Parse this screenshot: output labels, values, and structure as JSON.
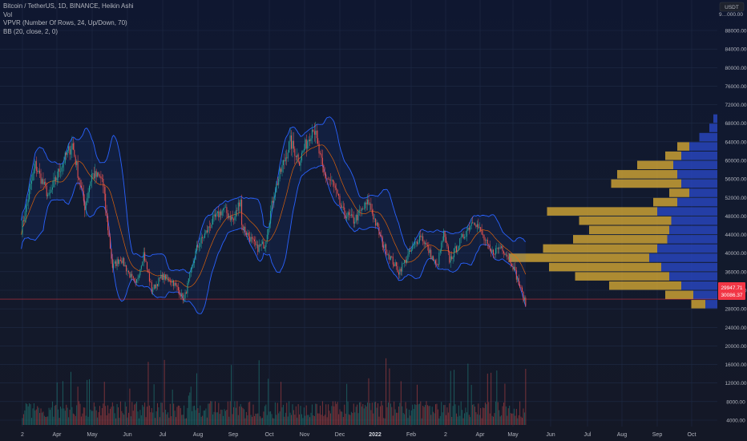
{
  "legend": {
    "main": "Bitcoin / TetherUS, 1D, BINANCE, Heikin Ashi",
    "vol": "Vol",
    "vpvr": "VPVR (Number Of Rows, 24, Up/Down, 70)",
    "bb": "BB (20, close, 2, 0)"
  },
  "currency_label": "USDT",
  "top_axis_value": "9…000.00",
  "price_tags": {
    "last": "30086.37",
    "prev": "29947.71",
    "color": "#f23645"
  },
  "colors": {
    "up": "#26a69a",
    "down": "#ef5350",
    "band": "#2962ff",
    "basis": "#ff6d00",
    "vpvr_up": "#2b4bcf",
    "vpvr_down": "#d4a835"
  },
  "chart_data": {
    "type": "candlestick",
    "price_ticks": [
      "88000.00",
      "84000.00",
      "80000.00",
      "76000.00",
      "72000.00",
      "68000.00",
      "64000.00",
      "60000.00",
      "56000.00",
      "52000.00",
      "48000.00",
      "44000.00",
      "40000.00",
      "36000.00",
      "32000.00",
      "28000.00",
      "24000.00",
      "20000.00",
      "16000.00",
      "12000.00",
      "8000.00",
      "4000.00"
    ],
    "time_labels": [
      {
        "label": "2",
        "bold": false
      },
      {
        "label": "Apr",
        "bold": false
      },
      {
        "label": "May",
        "bold": false
      },
      {
        "label": "Jun",
        "bold": false
      },
      {
        "label": "Jul",
        "bold": false
      },
      {
        "label": "Aug",
        "bold": false
      },
      {
        "label": "Sep",
        "bold": false
      },
      {
        "label": "Oct",
        "bold": false
      },
      {
        "label": "Nov",
        "bold": false
      },
      {
        "label": "Dec",
        "bold": false
      },
      {
        "label": "2022",
        "bold": true
      },
      {
        "label": "Feb",
        "bold": false
      },
      {
        "label": "2",
        "bold": false
      },
      {
        "label": "Apr",
        "bold": false
      },
      {
        "label": "May",
        "bold": false
      },
      {
        "label": "Jun",
        "bold": false
      },
      {
        "label": "Jul",
        "bold": false
      },
      {
        "label": "Aug",
        "bold": false
      },
      {
        "label": "Sep",
        "bold": false
      },
      {
        "label": "Oct",
        "bold": false
      }
    ],
    "price_path": [
      [
        "2021-03-01",
        45000
      ],
      [
        "2021-03-13",
        59000
      ],
      [
        "2021-03-25",
        52000
      ],
      [
        "2021-04-03",
        58000
      ],
      [
        "2021-04-14",
        63500
      ],
      [
        "2021-04-25",
        50000
      ],
      [
        "2021-05-01",
        57000
      ],
      [
        "2021-05-10",
        56000
      ],
      [
        "2021-05-19",
        37000
      ],
      [
        "2021-05-26",
        39000
      ],
      [
        "2021-06-08",
        33000
      ],
      [
        "2021-06-15",
        40000
      ],
      [
        "2021-06-22",
        32000
      ],
      [
        "2021-07-01",
        35000
      ],
      [
        "2021-07-10",
        34000
      ],
      [
        "2021-07-20",
        30000
      ],
      [
        "2021-07-31",
        41000
      ],
      [
        "2021-08-14",
        47000
      ],
      [
        "2021-08-23",
        49500
      ],
      [
        "2021-09-01",
        47000
      ],
      [
        "2021-09-07",
        52000
      ],
      [
        "2021-09-08",
        46000
      ],
      [
        "2021-09-21",
        41000
      ],
      [
        "2021-09-28",
        42000
      ],
      [
        "2021-10-06",
        53000
      ],
      [
        "2021-10-20",
        64000
      ],
      [
        "2021-10-28",
        60000
      ],
      [
        "2021-11-09",
        67500
      ],
      [
        "2021-11-18",
        57000
      ],
      [
        "2021-11-26",
        55000
      ],
      [
        "2021-12-04",
        49000
      ],
      [
        "2021-12-14",
        47000
      ],
      [
        "2021-12-27",
        51000
      ],
      [
        "2022-01-08",
        42000
      ],
      [
        "2022-01-22",
        36000
      ],
      [
        "2022-02-10",
        44000
      ],
      [
        "2022-02-24",
        37000
      ],
      [
        "2022-03-02",
        44000
      ],
      [
        "2022-03-07",
        38500
      ],
      [
        "2022-03-28",
        47500
      ],
      [
        "2022-04-12",
        40000
      ],
      [
        "2022-04-21",
        41500
      ],
      [
        "2022-04-30",
        38000
      ],
      [
        "2022-05-12",
        29000
      ]
    ],
    "vpvr_rows": [
      {
        "price_low": 30000,
        "price_high": 32000,
        "up": 120,
        "down": 140
      },
      {
        "price_low": 32000,
        "price_high": 34000,
        "up": 180,
        "down": 360
      },
      {
        "price_low": 34000,
        "price_high": 36000,
        "up": 240,
        "down": 470
      },
      {
        "price_low": 36000,
        "price_high": 38000,
        "up": 280,
        "down": 560
      },
      {
        "price_low": 38000,
        "price_high": 40000,
        "up": 340,
        "down": 700
      },
      {
        "price_low": 40000,
        "price_high": 42000,
        "up": 300,
        "down": 570
      },
      {
        "price_low": 42000,
        "price_high": 44000,
        "up": 250,
        "down": 470
      },
      {
        "price_low": 44000,
        "price_high": 46000,
        "up": 240,
        "down": 400
      },
      {
        "price_low": 46000,
        "price_high": 48000,
        "up": 230,
        "down": 460
      },
      {
        "price_low": 48000,
        "price_high": 50000,
        "up": 300,
        "down": 550
      },
      {
        "price_low": 50000,
        "price_high": 52000,
        "up": 200,
        "down": 120
      },
      {
        "price_low": 52000,
        "price_high": 54000,
        "up": 140,
        "down": 100
      },
      {
        "price_low": 54000,
        "price_high": 56000,
        "up": 180,
        "down": 350
      },
      {
        "price_low": 56000,
        "price_high": 58000,
        "up": 200,
        "down": 300
      },
      {
        "price_low": 58000,
        "price_high": 60000,
        "up": 220,
        "down": 180
      },
      {
        "price_low": 60000,
        "price_high": 62000,
        "up": 180,
        "down": 80
      },
      {
        "price_low": 62000,
        "price_high": 64000,
        "up": 140,
        "down": 60
      },
      {
        "price_low": 64000,
        "price_high": 66000,
        "up": 90,
        "down": 0
      },
      {
        "price_low": 66000,
        "price_high": 68000,
        "up": 40,
        "down": 0
      },
      {
        "price_low": 68000,
        "price_high": 70000,
        "up": 20,
        "down": 0
      },
      {
        "price_low": 28000,
        "price_high": 30000,
        "up": 60,
        "down": 70
      }
    ],
    "current_price": 30086.37
  }
}
